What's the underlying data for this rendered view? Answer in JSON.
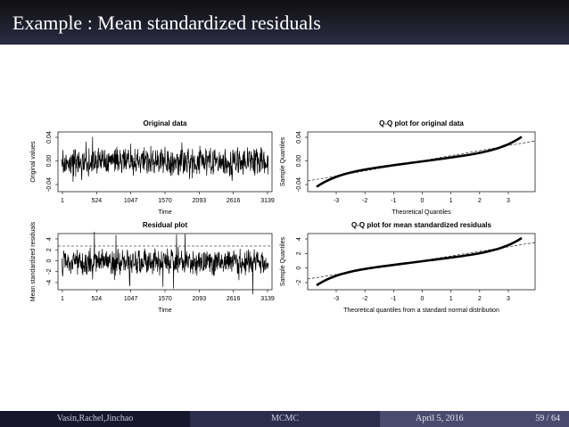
{
  "header": {
    "title": "Example : Mean standardized residuals"
  },
  "panels": [
    {
      "title": "Original data",
      "xlabel": "Time",
      "ylabel": "Original values",
      "kind": "time",
      "xticks": [
        "1",
        "524",
        "1047",
        "1570",
        "2093",
        "2616",
        "3139"
      ],
      "yticks": [
        "-0.04",
        "0.00",
        "0.04"
      ]
    },
    {
      "title": "Q-Q plot for original data",
      "xlabel": "Theoretical Quantiles",
      "ylabel": "Sample Quantiles",
      "kind": "qq",
      "xticks": [
        "-3",
        "-2",
        "-1",
        "0",
        "1",
        "2",
        "3"
      ],
      "yticks": [
        "-0.04",
        "0.00",
        "0.04"
      ]
    },
    {
      "title": "Residual plot",
      "xlabel": "Time",
      "ylabel": "Mean standardized residuals",
      "kind": "time",
      "xticks": [
        "1",
        "524",
        "1047",
        "1570",
        "2093",
        "2616",
        "3139"
      ],
      "yticks": [
        "-4",
        "-2",
        "0",
        "2",
        "4"
      ]
    },
    {
      "title": "Q-Q plot for mean standardized residuals",
      "xlabel": "Theoretical quantiles from a standard normal distribution",
      "ylabel": "Sample Quantiles",
      "kind": "qq",
      "xticks": [
        "-3",
        "-2",
        "-1",
        "0",
        "1",
        "2",
        "3"
      ],
      "yticks": [
        "-2",
        "0",
        "2",
        "4"
      ]
    }
  ],
  "footer": {
    "authors": "Vasin,Rachel,Jinchao",
    "short_title": "MCMC",
    "date": "April 5, 2016",
    "page": "59 / 64"
  }
}
